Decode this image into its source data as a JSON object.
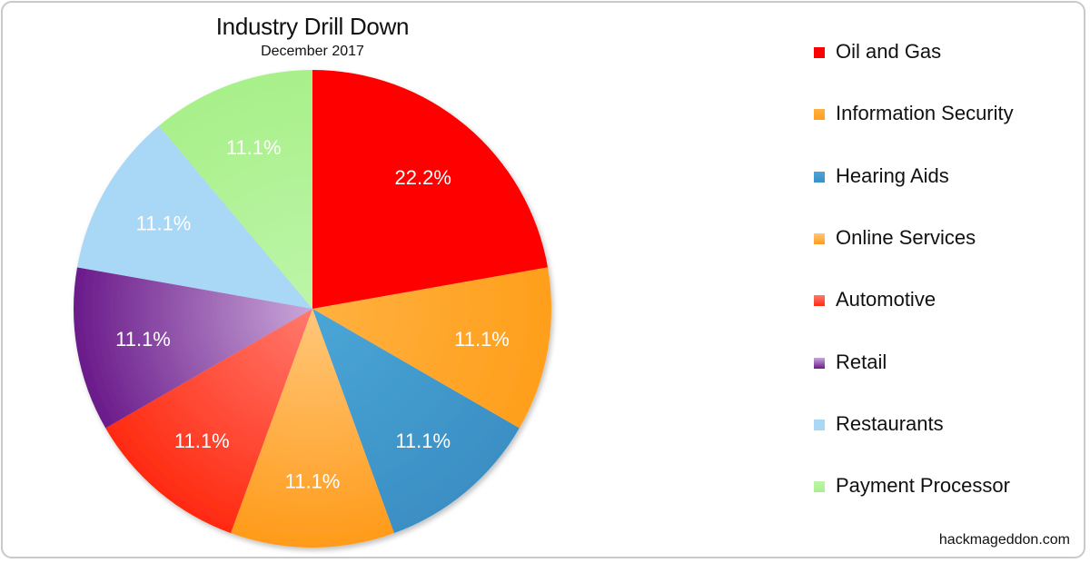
{
  "chart_data": {
    "type": "pie",
    "title": "Industry Drill Down",
    "subtitle": "December 2017",
    "slices": [
      {
        "label": "Oil and Gas",
        "value": 22.2,
        "display": "22.2%",
        "color": "#ff0000",
        "color_dark": "#ff0000"
      },
      {
        "label": "Information Security",
        "value": 11.1,
        "display": "11.1%",
        "color": "#ffb140",
        "color_dark": "#ff9f1c"
      },
      {
        "label": "Hearing Aids",
        "value": 11.1,
        "display": "11.1%",
        "color": "#4aa6d6",
        "color_dark": "#3b8fc4"
      },
      {
        "label": "Online Services",
        "value": 11.1,
        "display": "11.1%",
        "color": "#ffc77a",
        "color_dark": "#ff9b1a"
      },
      {
        "label": "Automotive",
        "value": 11.1,
        "display": "11.1%",
        "color": "#ff7a6e",
        "color_dark": "#ff2a10"
      },
      {
        "label": "Retail",
        "value": 11.1,
        "display": "11.1%",
        "color": "#c9a7d9",
        "color_dark": "#6a1a8a"
      },
      {
        "label": "Restaurants",
        "value": 11.1,
        "display": "11.1%",
        "color": "#a8d8f5",
        "color_dark": "#a8d8f5"
      },
      {
        "label": "Payment Processor",
        "value": 11.1,
        "display": "11.1%",
        "color": "#bdf5a8",
        "color_dark": "#a8f08a"
      }
    ],
    "legend_position": "right",
    "label_color": "#ffffff"
  },
  "source_text": "hackmageddon.com"
}
